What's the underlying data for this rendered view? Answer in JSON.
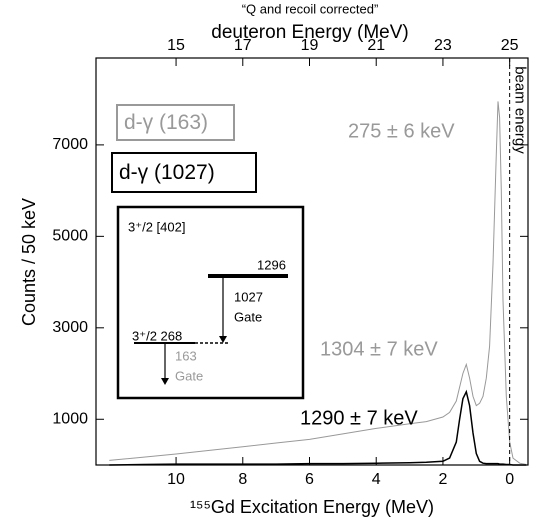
{
  "chart_data": {
    "type": "line",
    "top_note": "“Q and recoil corrected”",
    "x2_label": "deuteron Energy (MeV)",
    "xlabel": "¹⁵⁵Gd Excitation Energy (MeV)",
    "ylabel": "Counts / 50 keV",
    "x": [
      12,
      11,
      10,
      9,
      8,
      7,
      6,
      5,
      4,
      3,
      2.5,
      2,
      1.8,
      1.6,
      1.5,
      1.4,
      1.3,
      1.2,
      1.1,
      1.0,
      0.9,
      0.8,
      0.7,
      0.6,
      0.5,
      0.4,
      0.35,
      0.3,
      0.25,
      0.2,
      0.1,
      0,
      -0.1,
      -0.3,
      -0.5
    ],
    "series": [
      {
        "name": "d-γ (163)",
        "color": "#999999",
        "values": [
          100,
          170,
          240,
          320,
          400,
          480,
          560,
          680,
          800,
          900,
          950,
          1050,
          1150,
          1400,
          1700,
          2000,
          2200,
          1900,
          1500,
          1300,
          1350,
          1500,
          1900,
          2600,
          4400,
          6800,
          7950,
          7600,
          6000,
          3600,
          1500,
          500,
          150,
          40,
          10
        ]
      },
      {
        "name": "d-γ (1027)",
        "color": "#000000",
        "values": [
          0,
          10,
          20,
          20,
          20,
          20,
          30,
          30,
          40,
          50,
          60,
          80,
          150,
          500,
          1000,
          1450,
          1600,
          1300,
          700,
          250,
          80,
          40,
          30,
          30,
          30,
          30,
          30,
          20,
          20,
          20,
          10,
          10,
          0,
          0,
          0
        ]
      }
    ],
    "xlim": [
      12.4,
      -0.55
    ],
    "xticks": [
      10,
      8,
      6,
      4,
      2,
      0
    ],
    "x2lim": [
      12.6,
      25.55
    ],
    "x2ticks": [
      15,
      17,
      19,
      21,
      23,
      25
    ],
    "ylim": [
      0,
      8900
    ],
    "yticks": [
      1000,
      3000,
      5000,
      7000
    ],
    "beam_line": {
      "x": 0,
      "label": "beam energy"
    },
    "annotations": [
      {
        "text": "275 ± 6 keV",
        "color": "#999999"
      },
      {
        "text": "1304 ± 7 keV",
        "color": "#999999"
      },
      {
        "text": "1290 ± 7 keV",
        "color": "#000000"
      }
    ],
    "inset_labels": [
      "3⁺/2 [402]",
      "1296",
      "1027",
      "Gate",
      "3⁺/2  268",
      "163",
      "Gate"
    ]
  }
}
